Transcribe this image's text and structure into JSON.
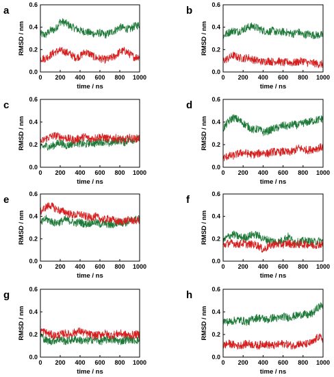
{
  "colors": {
    "green": "#1f7a3a",
    "red": "#d62020",
    "axis": "#000000"
  },
  "chart_data": [
    {
      "panel": "a",
      "type": "line",
      "xlabel": "time / ns",
      "ylabel": "RMSD / nm",
      "xlim": [
        0,
        1000
      ],
      "ylim": [
        0,
        0.6
      ],
      "xticks": [
        "0",
        "200",
        "400",
        "600",
        "800",
        "1000"
      ],
      "yticks": [
        "0.0",
        "0.2",
        "0.4",
        "0.6"
      ],
      "series": [
        {
          "color": "green",
          "x": [
            0,
            50,
            100,
            150,
            200,
            250,
            300,
            350,
            400,
            450,
            500,
            550,
            600,
            650,
            700,
            750,
            800,
            850,
            900,
            950,
            1000
          ],
          "values": [
            0.34,
            0.33,
            0.37,
            0.38,
            0.45,
            0.44,
            0.41,
            0.39,
            0.37,
            0.36,
            0.35,
            0.34,
            0.35,
            0.33,
            0.35,
            0.37,
            0.4,
            0.39,
            0.38,
            0.41,
            0.42
          ]
        },
        {
          "color": "red",
          "x": [
            0,
            50,
            100,
            150,
            200,
            250,
            300,
            350,
            400,
            450,
            500,
            550,
            600,
            650,
            700,
            750,
            800,
            850,
            900,
            950,
            1000
          ],
          "values": [
            0.12,
            0.12,
            0.15,
            0.18,
            0.19,
            0.18,
            0.16,
            0.13,
            0.14,
            0.18,
            0.16,
            0.13,
            0.12,
            0.11,
            0.12,
            0.14,
            0.18,
            0.19,
            0.16,
            0.13,
            0.14
          ]
        }
      ]
    },
    {
      "panel": "b",
      "type": "line",
      "xlabel": "time / ns",
      "ylabel": "RMSD / nm",
      "xlim": [
        0,
        1000
      ],
      "ylim": [
        0,
        0.6
      ],
      "xticks": [
        "0",
        "200",
        "400",
        "600",
        "800",
        "1000"
      ],
      "yticks": [
        "0.0",
        "0.2",
        "0.4",
        "0.6"
      ],
      "series": [
        {
          "color": "green",
          "x": [
            0,
            50,
            100,
            150,
            200,
            250,
            300,
            350,
            400,
            450,
            500,
            550,
            600,
            650,
            700,
            750,
            800,
            850,
            900,
            950,
            1000
          ],
          "values": [
            0.32,
            0.35,
            0.37,
            0.36,
            0.38,
            0.4,
            0.41,
            0.39,
            0.37,
            0.36,
            0.37,
            0.35,
            0.36,
            0.35,
            0.34,
            0.36,
            0.33,
            0.34,
            0.33,
            0.33,
            0.33
          ]
        },
        {
          "color": "red",
          "x": [
            0,
            50,
            100,
            150,
            200,
            250,
            300,
            350,
            400,
            450,
            500,
            550,
            600,
            650,
            700,
            750,
            800,
            850,
            900,
            950,
            1000
          ],
          "values": [
            0.1,
            0.12,
            0.15,
            0.13,
            0.12,
            0.13,
            0.11,
            0.1,
            0.09,
            0.1,
            0.09,
            0.1,
            0.08,
            0.09,
            0.08,
            0.09,
            0.1,
            0.08,
            0.08,
            0.07,
            0.07
          ]
        }
      ]
    },
    {
      "panel": "c",
      "type": "line",
      "xlabel": "time / ns",
      "ylabel": "RMSD / nm",
      "xlim": [
        0,
        1000
      ],
      "ylim": [
        0,
        0.6
      ],
      "xticks": [
        "0",
        "200",
        "400",
        "600",
        "800",
        "1000"
      ],
      "yticks": [
        "0.0",
        "0.2",
        "0.4",
        "0.6"
      ],
      "series": [
        {
          "color": "green",
          "x": [
            0,
            50,
            100,
            150,
            200,
            250,
            300,
            350,
            400,
            450,
            500,
            550,
            600,
            650,
            700,
            750,
            800,
            850,
            900,
            950,
            1000
          ],
          "values": [
            0.17,
            0.19,
            0.18,
            0.2,
            0.22,
            0.19,
            0.2,
            0.22,
            0.21,
            0.2,
            0.22,
            0.21,
            0.23,
            0.22,
            0.21,
            0.23,
            0.24,
            0.22,
            0.25,
            0.24,
            0.25
          ]
        },
        {
          "color": "red",
          "x": [
            0,
            50,
            100,
            150,
            200,
            250,
            300,
            350,
            400,
            450,
            500,
            550,
            600,
            650,
            700,
            750,
            800,
            850,
            900,
            950,
            1000
          ],
          "values": [
            0.22,
            0.25,
            0.27,
            0.28,
            0.27,
            0.26,
            0.25,
            0.24,
            0.26,
            0.27,
            0.25,
            0.26,
            0.27,
            0.26,
            0.25,
            0.26,
            0.25,
            0.24,
            0.26,
            0.25,
            0.26
          ]
        }
      ]
    },
    {
      "panel": "d",
      "type": "line",
      "xlabel": "time / ns",
      "ylabel": "RMSD / nm",
      "xlim": [
        0,
        1000
      ],
      "ylim": [
        0,
        0.6
      ],
      "xticks": [
        "0",
        "200",
        "400",
        "600",
        "800",
        "1000"
      ],
      "yticks": [
        "0.0",
        "0.2",
        "0.4",
        "0.6"
      ],
      "series": [
        {
          "color": "green",
          "x": [
            0,
            50,
            100,
            150,
            200,
            250,
            300,
            350,
            400,
            450,
            500,
            550,
            600,
            650,
            700,
            750,
            800,
            850,
            900,
            950,
            1000
          ],
          "values": [
            0.34,
            0.4,
            0.44,
            0.42,
            0.39,
            0.36,
            0.33,
            0.34,
            0.31,
            0.32,
            0.34,
            0.35,
            0.37,
            0.36,
            0.38,
            0.37,
            0.39,
            0.4,
            0.41,
            0.42,
            0.43
          ]
        },
        {
          "color": "red",
          "x": [
            0,
            50,
            100,
            150,
            200,
            250,
            300,
            350,
            400,
            450,
            500,
            550,
            600,
            650,
            700,
            750,
            800,
            850,
            900,
            950,
            1000
          ],
          "values": [
            0.08,
            0.1,
            0.1,
            0.12,
            0.13,
            0.12,
            0.11,
            0.12,
            0.13,
            0.12,
            0.14,
            0.13,
            0.14,
            0.13,
            0.14,
            0.17,
            0.16,
            0.15,
            0.16,
            0.17,
            0.18
          ]
        }
      ]
    },
    {
      "panel": "e",
      "type": "line",
      "xlabel": "time / ns",
      "ylabel": "RMSD / nm",
      "xlim": [
        0,
        1000
      ],
      "ylim": [
        0,
        0.6
      ],
      "xticks": [
        "0",
        "200",
        "400",
        "600",
        "800",
        "1000"
      ],
      "yticks": [
        "0.0",
        "0.2",
        "0.4",
        "0.6"
      ],
      "series": [
        {
          "color": "green",
          "x": [
            0,
            50,
            100,
            150,
            200,
            250,
            300,
            350,
            400,
            450,
            500,
            550,
            600,
            650,
            700,
            750,
            800,
            850,
            900,
            950,
            1000
          ],
          "values": [
            0.33,
            0.38,
            0.36,
            0.34,
            0.35,
            0.37,
            0.36,
            0.34,
            0.35,
            0.33,
            0.34,
            0.35,
            0.33,
            0.34,
            0.32,
            0.33,
            0.35,
            0.34,
            0.36,
            0.37,
            0.38
          ]
        },
        {
          "color": "red",
          "x": [
            0,
            50,
            100,
            150,
            200,
            250,
            300,
            350,
            400,
            450,
            500,
            550,
            600,
            650,
            700,
            750,
            800,
            850,
            900,
            950,
            1000
          ],
          "values": [
            0.44,
            0.48,
            0.5,
            0.47,
            0.45,
            0.44,
            0.42,
            0.41,
            0.42,
            0.4,
            0.39,
            0.4,
            0.38,
            0.37,
            0.38,
            0.36,
            0.35,
            0.36,
            0.37,
            0.36,
            0.37
          ]
        }
      ]
    },
    {
      "panel": "f",
      "type": "line",
      "xlabel": "time / ns",
      "ylabel": "RMSD / nm",
      "xlim": [
        0,
        1000
      ],
      "ylim": [
        0,
        0.6
      ],
      "xticks": [
        "0",
        "200",
        "400",
        "600",
        "800",
        "1000"
      ],
      "yticks": [
        "0.0",
        "0.2",
        "0.4",
        "0.6"
      ],
      "series": [
        {
          "color": "green",
          "x": [
            0,
            50,
            100,
            150,
            200,
            250,
            300,
            350,
            400,
            450,
            500,
            550,
            600,
            650,
            700,
            750,
            800,
            850,
            900,
            950,
            1000
          ],
          "values": [
            0.18,
            0.22,
            0.24,
            0.22,
            0.21,
            0.22,
            0.24,
            0.23,
            0.2,
            0.19,
            0.18,
            0.17,
            0.19,
            0.22,
            0.18,
            0.17,
            0.18,
            0.18,
            0.17,
            0.18,
            0.18
          ]
        },
        {
          "color": "red",
          "x": [
            0,
            50,
            100,
            150,
            200,
            250,
            300,
            350,
            400,
            450,
            500,
            550,
            600,
            650,
            700,
            750,
            800,
            850,
            900,
            950,
            1000
          ],
          "values": [
            0.14,
            0.16,
            0.16,
            0.15,
            0.16,
            0.15,
            0.15,
            0.14,
            0.1,
            0.13,
            0.15,
            0.15,
            0.15,
            0.16,
            0.15,
            0.15,
            0.15,
            0.15,
            0.14,
            0.15,
            0.15
          ]
        }
      ]
    },
    {
      "panel": "g",
      "type": "line",
      "xlabel": "time / ns",
      "ylabel": "RMSD / nm",
      "xlim": [
        0,
        1000
      ],
      "ylim": [
        0,
        0.6
      ],
      "xticks": [
        "0",
        "200",
        "400",
        "600",
        "800",
        "1000"
      ],
      "yticks": [
        "0.0",
        "0.2",
        "0.4",
        "0.6"
      ],
      "series": [
        {
          "color": "green",
          "x": [
            0,
            50,
            100,
            150,
            200,
            250,
            300,
            350,
            400,
            450,
            500,
            550,
            600,
            650,
            700,
            750,
            800,
            850,
            900,
            950,
            1000
          ],
          "values": [
            0.2,
            0.15,
            0.14,
            0.15,
            0.16,
            0.14,
            0.15,
            0.16,
            0.15,
            0.14,
            0.15,
            0.16,
            0.14,
            0.15,
            0.16,
            0.15,
            0.14,
            0.15,
            0.16,
            0.15,
            0.15
          ]
        },
        {
          "color": "red",
          "x": [
            0,
            50,
            100,
            150,
            200,
            250,
            300,
            350,
            400,
            450,
            500,
            550,
            600,
            650,
            700,
            750,
            800,
            850,
            900,
            950,
            1000
          ],
          "values": [
            0.24,
            0.22,
            0.2,
            0.19,
            0.2,
            0.21,
            0.2,
            0.22,
            0.23,
            0.21,
            0.2,
            0.19,
            0.2,
            0.21,
            0.19,
            0.2,
            0.21,
            0.2,
            0.19,
            0.2,
            0.2
          ]
        }
      ]
    },
    {
      "panel": "h",
      "type": "line",
      "xlabel": "time / ns",
      "ylabel": "RMSD / nm",
      "xlim": [
        0,
        1000
      ],
      "ylim": [
        0,
        0.6
      ],
      "xticks": [
        "0",
        "200",
        "400",
        "600",
        "800",
        "1000"
      ],
      "yticks": [
        "0.0",
        "0.2",
        "0.4",
        "0.6"
      ],
      "series": [
        {
          "color": "green",
          "x": [
            0,
            50,
            100,
            150,
            200,
            250,
            300,
            350,
            400,
            450,
            500,
            550,
            600,
            650,
            700,
            750,
            800,
            850,
            900,
            950,
            1000
          ],
          "values": [
            0.32,
            0.31,
            0.32,
            0.33,
            0.32,
            0.31,
            0.34,
            0.35,
            0.34,
            0.33,
            0.35,
            0.34,
            0.36,
            0.35,
            0.36,
            0.37,
            0.38,
            0.37,
            0.39,
            0.44,
            0.46
          ]
        },
        {
          "color": "red",
          "x": [
            0,
            50,
            100,
            150,
            200,
            250,
            300,
            350,
            400,
            450,
            500,
            550,
            600,
            650,
            700,
            750,
            800,
            850,
            900,
            950,
            1000
          ],
          "values": [
            0.1,
            0.12,
            0.11,
            0.1,
            0.11,
            0.12,
            0.11,
            0.1,
            0.12,
            0.11,
            0.1,
            0.11,
            0.12,
            0.11,
            0.1,
            0.12,
            0.11,
            0.12,
            0.13,
            0.18,
            0.16
          ]
        }
      ]
    }
  ]
}
